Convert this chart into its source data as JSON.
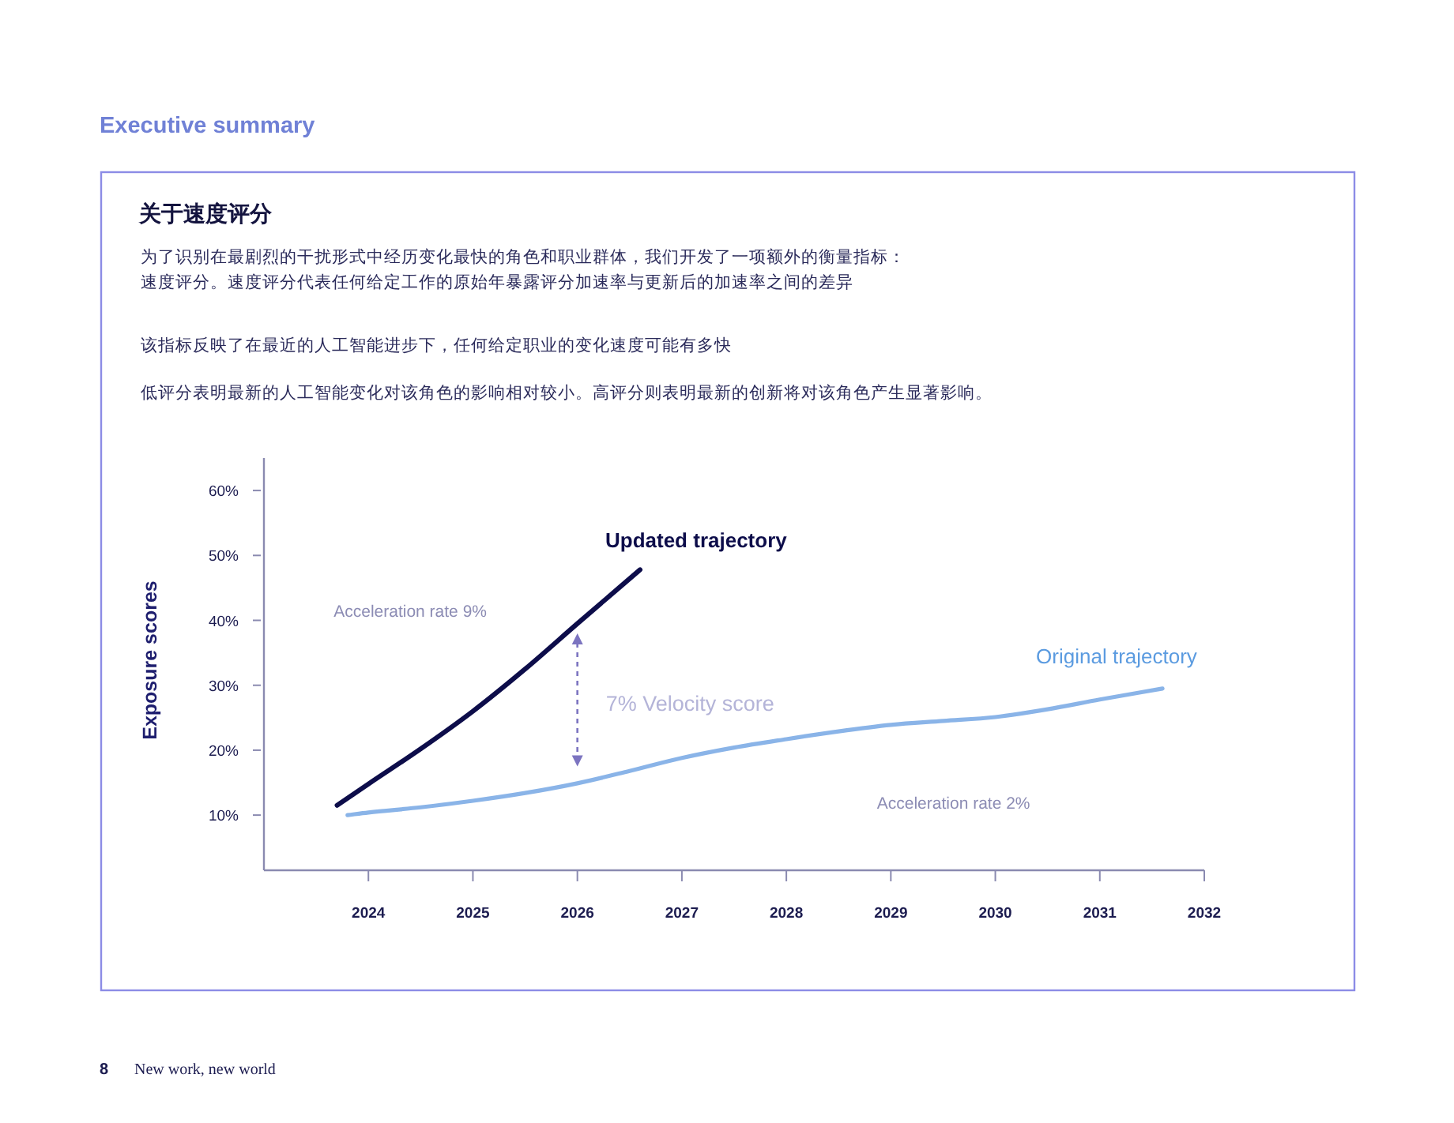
{
  "chart_data": {
    "type": "line",
    "title": "关于速度评分",
    "subtitle": "为了识别在最剧烈的干扰形式中经历变化最快的角色和职业群体，我们开发了一项额外的衡量指标：速度评分。速度评分代表任何给定工作的原始年暴露评分加速率与更新后的加速率之间的差异",
    "ylabel": "Exposure scores",
    "annotations": [
      "Executive summary",
      "该指标反映了在最近的人工智能进步下，任何给定职业的变化速度可能有多快",
      "低评分表明最新的人工智能变化对该角色的影响相对较小。高评分则表明最新的创新将对该角色产生显著影响。",
      "Acceleration rate 9%",
      "7% Velocity score",
      "Acceleration rate 2%",
      "8",
      "New work, new world"
    ],
    "series": [
      {
        "name": "Updated trajectory",
        "color": "#0d0d4a",
        "x": [
          2023.7,
          2024,
          2024.5,
          2025,
          2025.5,
          2026,
          2026.6
        ],
        "values": [
          11.5,
          14.8,
          20.2,
          26,
          32.5,
          39.5,
          47.8
        ]
      },
      {
        "name": "Original trajectory",
        "color": "#8ab4e8",
        "x": [
          2023.8,
          2024,
          2024.5,
          2025,
          2025.5,
          2026,
          2026.5,
          2027,
          2027.5,
          2028,
          2028.5,
          2029,
          2029.5,
          2030,
          2030.5,
          2031,
          2031.6
        ],
        "values": [
          10,
          10.4,
          11.2,
          12.2,
          13.4,
          14.9,
          16.8,
          18.8,
          20.4,
          21.7,
          22.9,
          23.9,
          24.5,
          25.1,
          26.3,
          27.8,
          29.5
        ]
      }
    ],
    "xlim": [
      2023,
      2032
    ],
    "xticks": [
      2024,
      2025,
      2026,
      2027,
      2028,
      2029,
      2030,
      2031,
      2032
    ],
    "ylim": [
      1.5,
      65
    ],
    "yticks": [
      {
        "value": 10,
        "label": "10%"
      },
      {
        "value": 20,
        "label": "20%"
      },
      {
        "value": 30,
        "label": "30%"
      },
      {
        "value": 40,
        "label": "40%"
      },
      {
        "value": 50,
        "label": "50%"
      },
      {
        "value": 60,
        "label": "60%"
      }
    ],
    "grid": false,
    "marker": "none",
    "line_style": "solid"
  }
}
